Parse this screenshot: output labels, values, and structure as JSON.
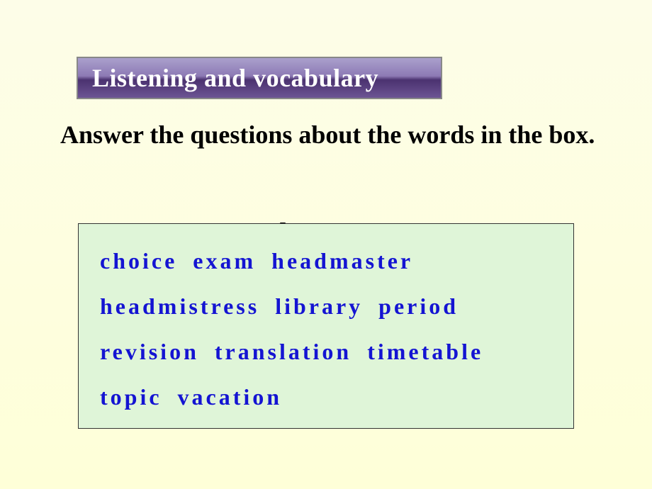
{
  "banner": {
    "title": "Listening and vocabulary",
    "background_gradient_top": "#aaa0cc",
    "background_gradient_mid1": "#8d7ab5",
    "background_gradient_mid2": "#4b3270",
    "background_gradient_bottom": "#6c5493",
    "text_color": "#ffffff",
    "font_size": 36
  },
  "instruction": {
    "text": "Answer the questions about the words in the box.",
    "text_color": "#000000",
    "font_size": 36
  },
  "wordbox": {
    "background_color": "#dff5d8",
    "border_color": "#333333",
    "text_color": "#1414d2",
    "font_size": 32,
    "letter_spacing": 4,
    "words": "choice   exam   headmaster  headmistress   library   period revision   translation     timetable   topic   vacation"
  },
  "page_background": {
    "gradient_top": "#fdfde8",
    "gradient_bottom": "#feffd8"
  }
}
